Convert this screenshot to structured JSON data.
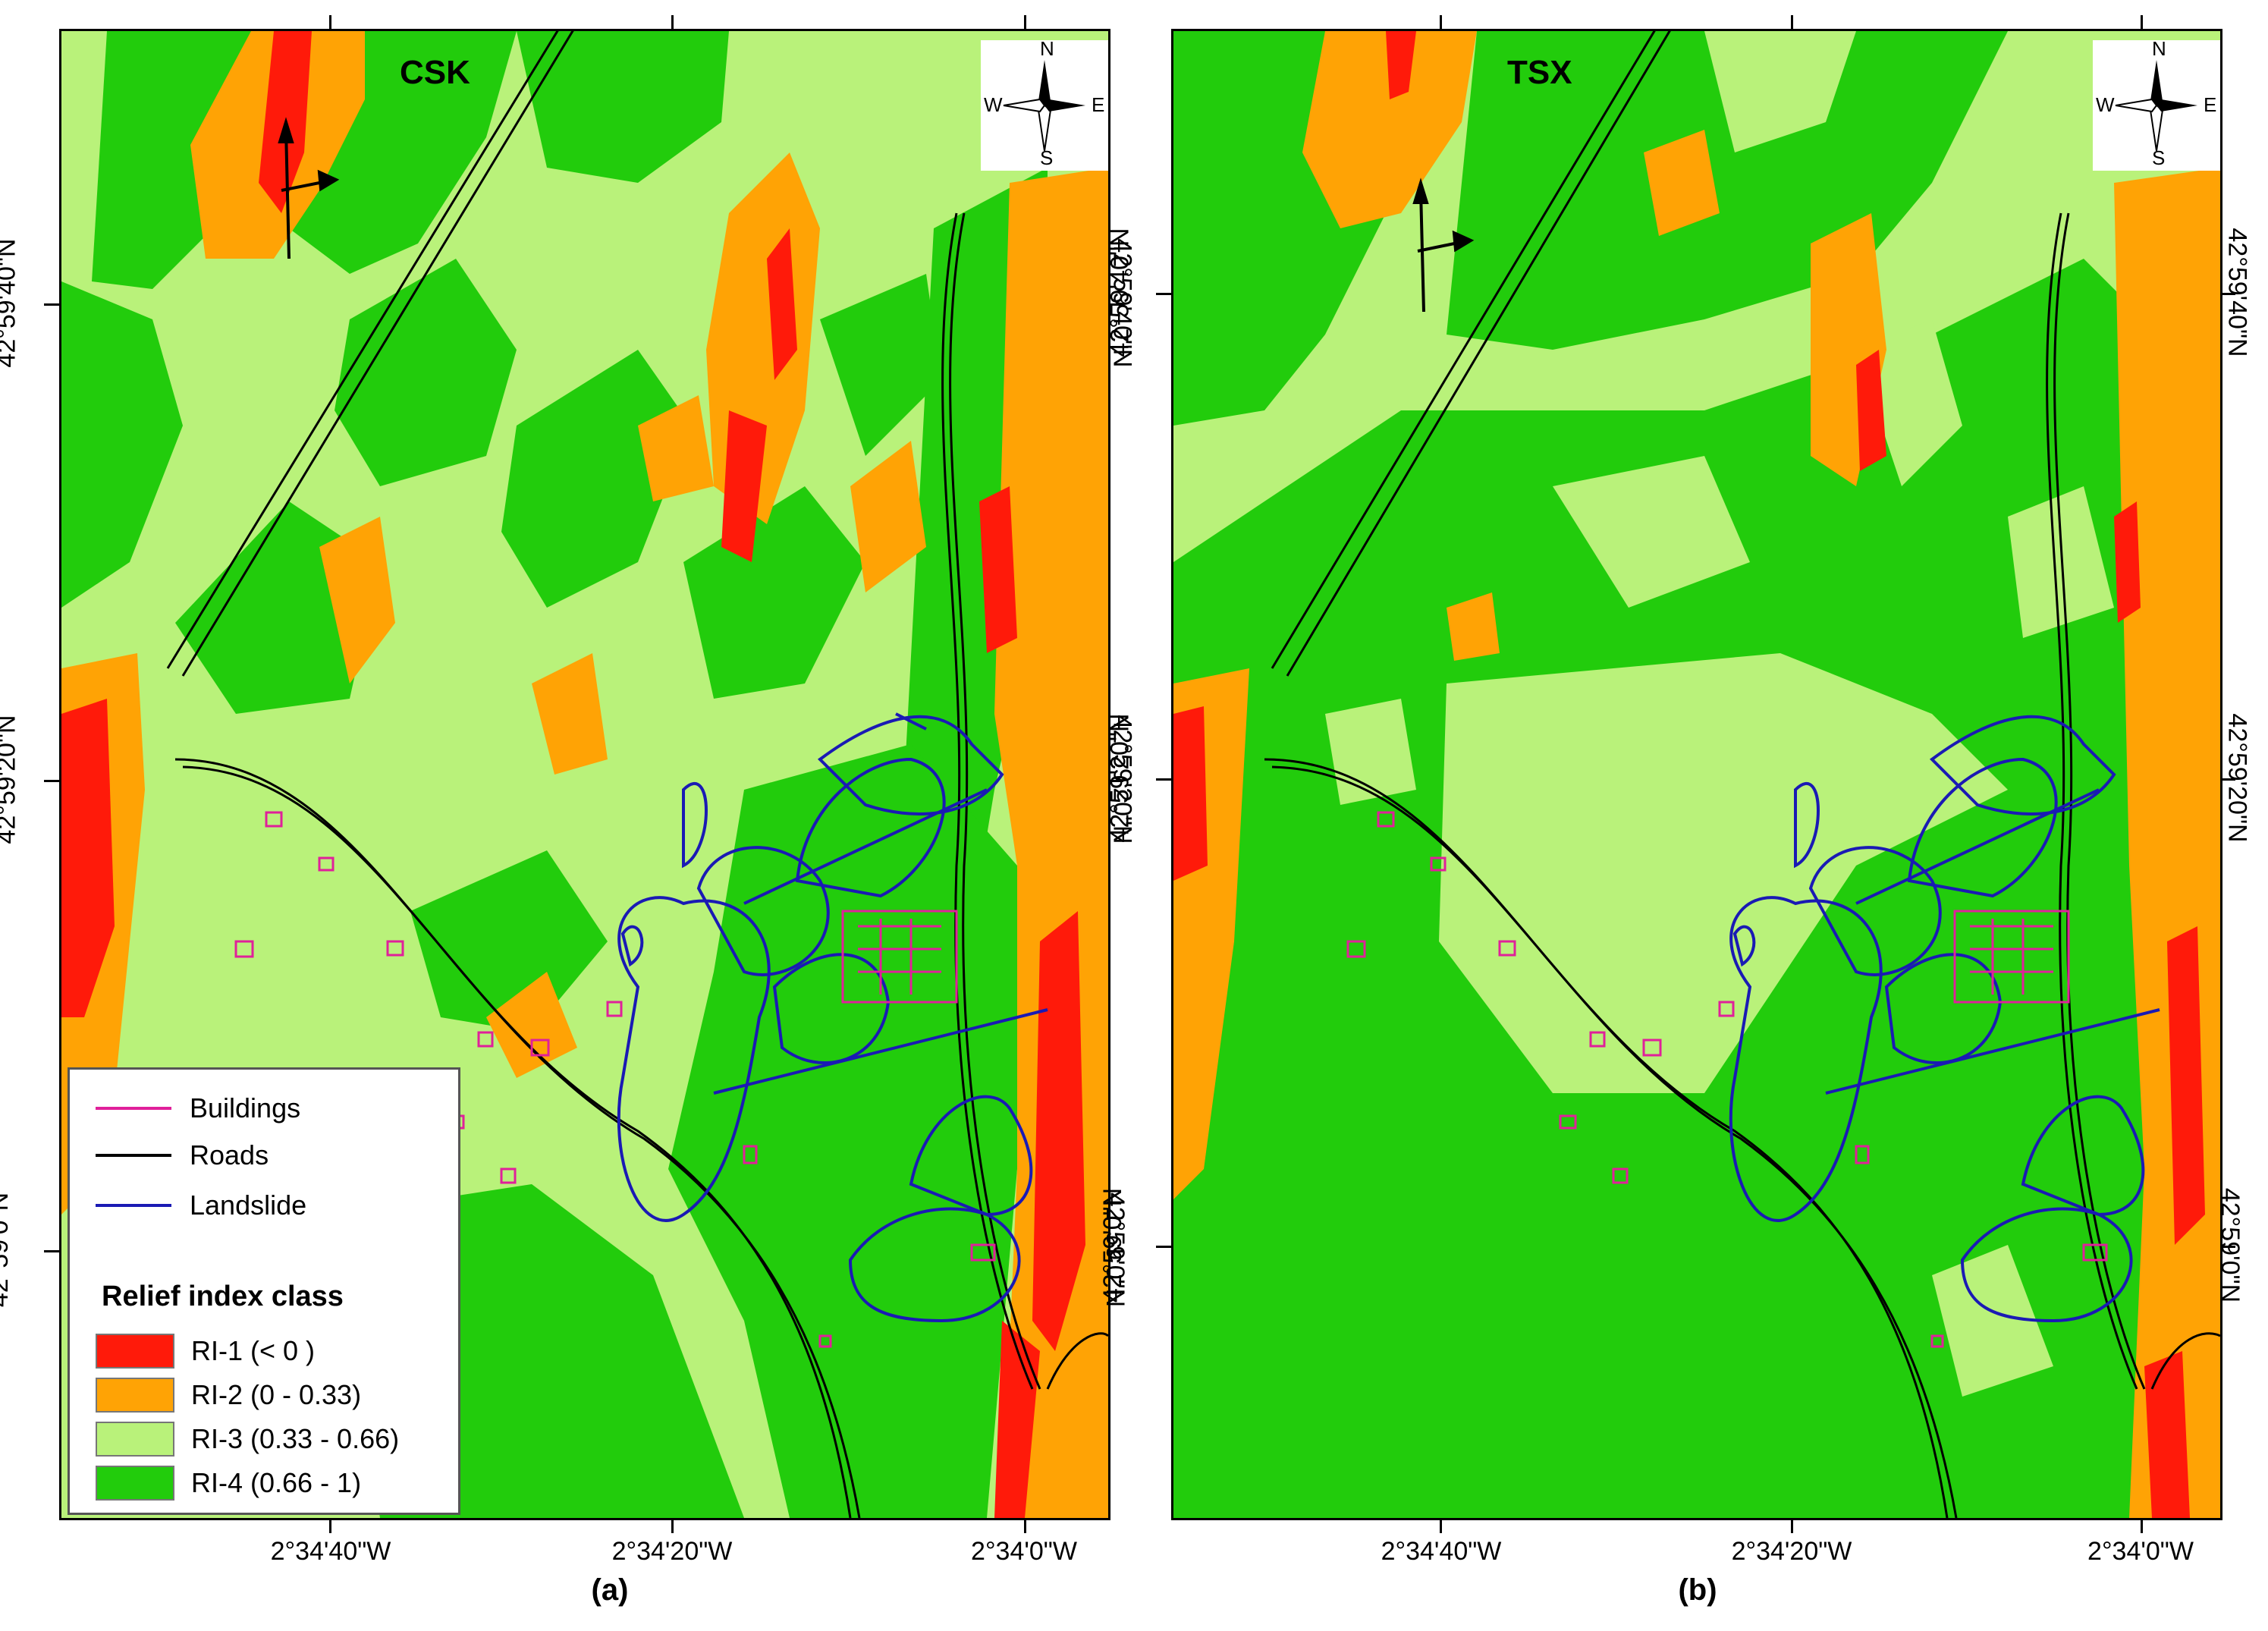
{
  "panels": [
    {
      "id": "a",
      "sensor": "CSK",
      "caption": "(a)",
      "lon_ticks": [
        "2°34'40\"W",
        "2°34'20\"W",
        "2°34'0\"W"
      ],
      "lat_ticks": [
        "42°59'40\"N",
        "42°59'20\"N",
        "42°59'0\"N"
      ]
    },
    {
      "id": "b",
      "sensor": "TSX",
      "caption": "(b)",
      "lon_ticks": [
        "2°34'40\"W",
        "2°34'20\"W",
        "2°34'0\"W"
      ],
      "lat_ticks": [
        "42°59'40\"N",
        "42°59'20\"N",
        "42°59'0\"N"
      ]
    }
  ],
  "compass": {
    "n": "N",
    "s": "S",
    "e": "E",
    "w": "W",
    "icon": "compass-rose-icon"
  },
  "legend": {
    "lines": [
      {
        "label": "Buildings",
        "color": "#e0209a"
      },
      {
        "label": "Roads",
        "color": "#000000"
      },
      {
        "label": "Landslide",
        "color": "#1a1ab4"
      }
    ],
    "class_title": "Relief index class",
    "classes": [
      {
        "label": "RI-1 (< 0 )",
        "color": "#ff1a0a"
      },
      {
        "label": "RI-2 (0 - 0.33)",
        "color": "#ffa305"
      },
      {
        "label": "RI-3 (0.33 - 0.66)",
        "color": "#b9f27a"
      },
      {
        "label": "RI-4 (0.66 - 1)",
        "color": "#22cc0c"
      }
    ]
  }
}
